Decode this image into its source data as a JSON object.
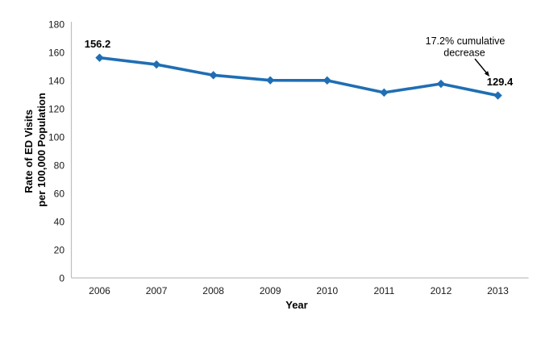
{
  "chart_data": {
    "type": "line",
    "title": "",
    "categories": [
      "2006",
      "2007",
      "2008",
      "2009",
      "2010",
      "2011",
      "2012",
      "2013"
    ],
    "series": [
      {
        "name": "Rate of ED Visits per 100,000 Population",
        "values": [
          156.2,
          151.4,
          143.8,
          140.2,
          140.1,
          131.5,
          137.7,
          129.4
        ],
        "color": "#1F6EB4"
      }
    ],
    "xlabel": "Year",
    "ylabel": "Rate of ED Visits per 100,000 Population",
    "ylabel_lines": [
      "Rate of ED Visits",
      "per 100,000 Population"
    ],
    "ylim": [
      0,
      180
    ],
    "ytick_step": 20,
    "grid": false,
    "legend": false,
    "axis_color": "#BFBFBF",
    "point_labels": {
      "first": "156.2",
      "last": "129.4"
    }
  },
  "annotation": {
    "line1": "17.2% cumulative",
    "line2": "decrease"
  }
}
